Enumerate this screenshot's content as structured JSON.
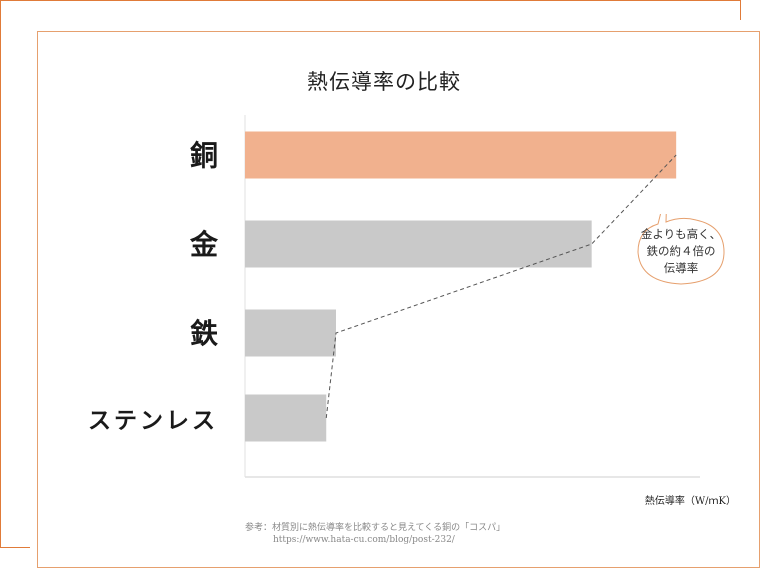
{
  "chart_data": {
    "type": "bar",
    "orientation": "horizontal",
    "title": "熱伝導率の比較",
    "categories": [
      "銅",
      "金",
      "鉄",
      "ステンレス"
    ],
    "values": [
      398,
      320,
      84,
      75
    ],
    "bar_colors": [
      "#f1b18e",
      "#c9c9c9",
      "#c9c9c9",
      "#c9c9c9"
    ],
    "xlabel": "熱伝導率（W/ｍK）",
    "xlim": [
      0,
      420
    ],
    "grid": false
  },
  "callout": {
    "lines": [
      "金よりも高く、",
      "鉄の約４倍の",
      "伝導率"
    ]
  },
  "source": {
    "label": "参考：材質別に熱伝導率を比較すると見えてくる銅の「コスパ」",
    "url": "https://www.hata-cu.com/blog/post-232/"
  },
  "colors": {
    "accent": "#e07b39",
    "highlight": "#f1b18e",
    "bar": "#c9c9c9"
  }
}
